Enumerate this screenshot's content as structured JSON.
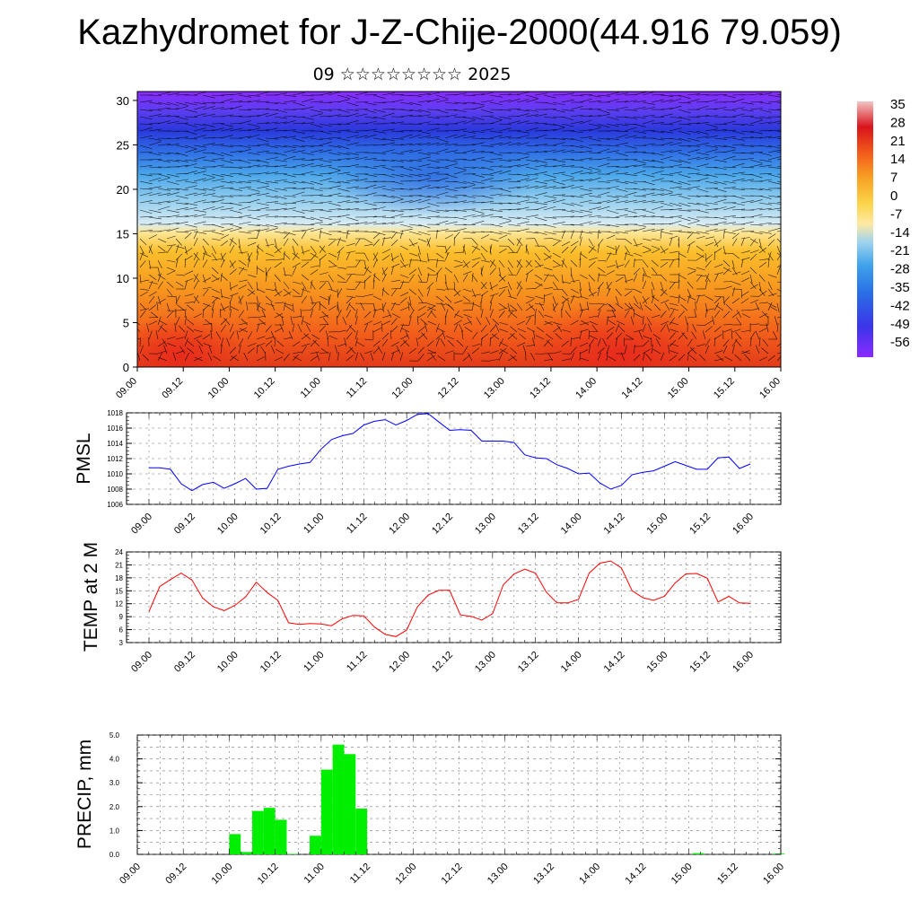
{
  "header": {
    "title": "Kazhydromet for J-Z-Chije-2000(44.916 79.059)",
    "subtitle": "09 ☆☆☆☆☆☆☆☆ 2025"
  },
  "chart_data": [
    {
      "type": "heatmap",
      "description_vars": "temperature cross-section with wind barbs",
      "x_ticks": [
        "09.00",
        "09.12",
        "10.00",
        "10.12",
        "11.00",
        "11.12",
        "12.00",
        "12.12",
        "13.00",
        "13.12",
        "14.00",
        "14.12",
        "15.00",
        "15.12",
        "16.00"
      ],
      "y_ticks": [
        0,
        5,
        10,
        15,
        20,
        25,
        30
      ],
      "ylim": [
        0,
        31
      ],
      "colorbar_labels": [
        "35",
        "28",
        "21",
        "14",
        "7",
        "0",
        "-7",
        "-14",
        "-21",
        "-28",
        "-35",
        "-42",
        "-49",
        "-56"
      ],
      "colorbar_range": [
        -60,
        38
      ],
      "colors": {
        "hot": "#e8261c",
        "warm": "#f78a1e",
        "mild": "#fcc02a",
        "cool": "#fde38b",
        "cold": "#9fd3ee",
        "colder": "#3b9ee6",
        "frigid": "#3136e0",
        "top": "#8a2bff"
      }
    },
    {
      "type": "line",
      "ylabel": "PMSL",
      "ylim": [
        1006,
        1018
      ],
      "y_ticks": [
        1006,
        1008,
        1010,
        1012,
        1014,
        1016,
        1018
      ],
      "x_ticks": [
        "09.00",
        "09.12",
        "10.00",
        "10.12",
        "11.00",
        "11.12",
        "12.00",
        "12.12",
        "13.00",
        "13.12",
        "14.00",
        "14.12",
        "15.00",
        "15.12",
        "16.00"
      ],
      "color": "#0000ff",
      "series": [
        {
          "x": [
            0,
            3,
            6,
            9,
            12,
            15,
            18,
            21,
            24,
            27,
            30,
            33,
            36,
            39,
            42,
            45,
            48,
            51,
            54,
            57,
            60,
            63,
            66,
            69,
            72,
            75,
            78,
            81,
            84,
            87,
            90,
            93,
            96,
            99,
            102,
            105,
            108,
            111,
            114,
            117,
            120,
            123,
            126,
            129,
            132,
            135,
            138,
            141,
            144,
            147,
            150,
            153,
            156,
            159,
            162,
            165,
            168
          ],
          "values": [
            1010.8,
            1010.8,
            1010.6,
            1008.7,
            1007.8,
            1008.6,
            1008.9,
            1008.1,
            1008.7,
            1009.4,
            1008.0,
            1008.1,
            1010.6,
            1011.0,
            1011.3,
            1011.5,
            1013.2,
            1014.5,
            1015.0,
            1015.3,
            1016.4,
            1016.9,
            1017.1,
            1016.4,
            1017.0,
            1017.8,
            1017.9,
            1016.8,
            1015.7,
            1015.8,
            1015.7,
            1014.3,
            1014.3,
            1014.3,
            1014.1,
            1012.5,
            1012.1,
            1012.0,
            1011.2,
            1010.7,
            1010.0,
            1010.1,
            1008.8,
            1008.0,
            1008.5,
            1009.9,
            1010.2,
            1010.4,
            1011.0,
            1011.6,
            1011.1,
            1010.6,
            1010.6,
            1012.1,
            1012.2,
            1010.7,
            1011.3
          ]
        }
      ]
    },
    {
      "type": "line",
      "ylabel": "TEMP at 2 M",
      "ylim": [
        3,
        24
      ],
      "y_ticks": [
        3,
        6,
        9,
        12,
        15,
        18,
        21,
        24
      ],
      "x_ticks": [
        "09.00",
        "09.12",
        "10.00",
        "10.12",
        "11.00",
        "11.12",
        "12.00",
        "12.12",
        "13.00",
        "13.12",
        "14.00",
        "14.12",
        "15.00",
        "15.12",
        "16.00"
      ],
      "color": "#ff0000",
      "series": [
        {
          "x": [
            0,
            3,
            6,
            9,
            12,
            15,
            18,
            21,
            24,
            27,
            30,
            33,
            36,
            39,
            42,
            45,
            48,
            51,
            54,
            57,
            60,
            63,
            66,
            69,
            72,
            75,
            78,
            81,
            84,
            87,
            90,
            93,
            96,
            99,
            102,
            105,
            108,
            111,
            114,
            117,
            120,
            123,
            126,
            129,
            132,
            135,
            138,
            141,
            144,
            147,
            150,
            153,
            156,
            159,
            162,
            165,
            168
          ],
          "values": [
            10.2,
            16.0,
            17.6,
            19.1,
            17.5,
            13.3,
            11.3,
            10.4,
            11.6,
            13.6,
            17.0,
            14.6,
            12.8,
            7.6,
            7.2,
            7.4,
            7.3,
            6.9,
            8.5,
            9.3,
            9.2,
            6.6,
            4.9,
            4.4,
            5.9,
            11.3,
            14.0,
            15.1,
            15.1,
            9.4,
            9.1,
            8.2,
            9.7,
            16.4,
            18.9,
            20.0,
            19.1,
            14.7,
            12.2,
            12.2,
            13.0,
            19.1,
            21.4,
            21.9,
            20.3,
            15.0,
            13.4,
            12.8,
            13.7,
            16.8,
            18.9,
            19.0,
            17.9,
            12.4,
            13.7,
            12.2,
            12.1
          ]
        }
      ]
    },
    {
      "type": "bar",
      "ylabel": "PRECIP, mm",
      "ylim": [
        0,
        5
      ],
      "y_ticks": [
        "0.0",
        "1.0",
        "2.0",
        "3.0",
        "4.0",
        "5.0"
      ],
      "x_ticks": [
        "09.00",
        "09.12",
        "10.00",
        "10.12",
        "11.00",
        "11.12",
        "12.00",
        "12.12",
        "13.00",
        "13.12",
        "14.00",
        "14.12",
        "15.00",
        "15.12",
        "16.00"
      ],
      "color": "#00ee00",
      "series": [
        {
          "x": [
            25.5,
            28.5,
            31.5,
            34.5,
            37.5,
            40.5,
            46.5,
            49.5,
            52.5,
            55.5,
            58.5,
            146.5,
            167.5
          ],
          "values": [
            0.85,
            0.1,
            1.82,
            1.95,
            1.45,
            0.02,
            0.78,
            3.55,
            4.6,
            4.2,
            1.92,
            0.05,
            0.03
          ]
        }
      ]
    }
  ]
}
